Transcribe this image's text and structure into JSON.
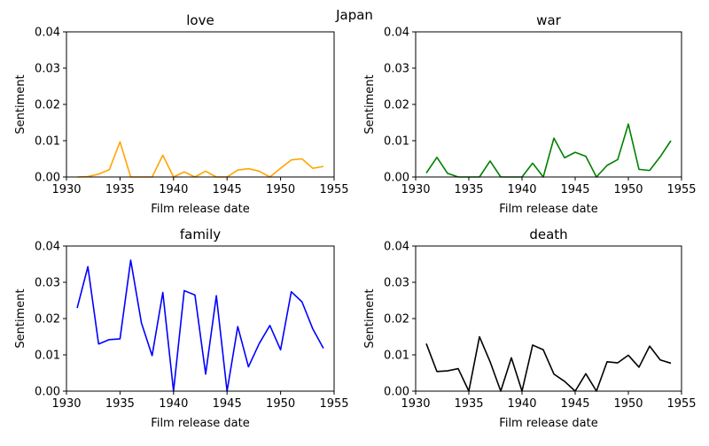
{
  "figure": {
    "suptitle": "Japan"
  },
  "chart_data": [
    {
      "type": "line",
      "title": "love",
      "xlabel": "Film release date",
      "ylabel": "Sentiment",
      "color": "#ffa500",
      "xlim": [
        1930,
        1955
      ],
      "ylim": [
        0,
        0.04
      ],
      "xticks": [
        1930,
        1935,
        1940,
        1945,
        1950,
        1955
      ],
      "yticks": [
        0.0,
        0.01,
        0.02,
        0.03,
        0.04
      ],
      "xtick_labels": [
        "1930",
        "1935",
        "1940",
        "1945",
        "1950",
        "1955"
      ],
      "ytick_labels": [
        "0.00",
        "0.01",
        "0.02",
        "0.03",
        "0.04"
      ],
      "grid": false,
      "series": [
        {
          "x": [
            1931,
            1932,
            1933,
            1934,
            1935,
            1936,
            1937,
            1938,
            1939,
            1940,
            1941,
            1942,
            1943,
            1944,
            1945,
            1946,
            1947,
            1948,
            1949,
            1950,
            1951,
            1952,
            1953,
            1954
          ],
          "y": [
            0.0,
            0.0001,
            0.0008,
            0.002,
            0.0097,
            0.0,
            0.0,
            0.0,
            0.006,
            0.0,
            0.0014,
            0.0,
            0.0016,
            0.0,
            0.0,
            0.0019,
            0.0023,
            0.0016,
            0.0,
            0.0024,
            0.0047,
            0.005,
            0.0024,
            0.0029
          ]
        }
      ]
    },
    {
      "type": "line",
      "title": "war",
      "xlabel": "Film release date",
      "ylabel": "Sentiment",
      "color": "#008000",
      "xlim": [
        1930,
        1955
      ],
      "ylim": [
        0,
        0.04
      ],
      "xticks": [
        1930,
        1935,
        1940,
        1945,
        1950,
        1955
      ],
      "yticks": [
        0.0,
        0.01,
        0.02,
        0.03,
        0.04
      ],
      "xtick_labels": [
        "1930",
        "1935",
        "1940",
        "1945",
        "1950",
        "1955"
      ],
      "ytick_labels": [
        "0.00",
        "0.01",
        "0.02",
        "0.03",
        "0.04"
      ],
      "grid": false,
      "series": [
        {
          "x": [
            1931,
            1932,
            1933,
            1934,
            1935,
            1936,
            1937,
            1938,
            1939,
            1940,
            1941,
            1942,
            1943,
            1944,
            1945,
            1946,
            1947,
            1948,
            1949,
            1950,
            1951,
            1952,
            1953,
            1954
          ],
          "y": [
            0.0011,
            0.0054,
            0.001,
            0.0,
            0.0,
            0.0,
            0.0044,
            0.0,
            0.0,
            0.0,
            0.0038,
            0.0,
            0.0107,
            0.0053,
            0.0068,
            0.0057,
            0.0,
            0.0032,
            0.0048,
            0.0146,
            0.0021,
            0.0018,
            0.0056,
            0.01
          ]
        }
      ]
    },
    {
      "type": "line",
      "title": "family",
      "xlabel": "Film release date",
      "ylabel": "Sentiment",
      "color": "#0000ff",
      "xlim": [
        1930,
        1955
      ],
      "ylim": [
        0,
        0.04
      ],
      "xticks": [
        1930,
        1935,
        1940,
        1945,
        1950,
        1955
      ],
      "yticks": [
        0.0,
        0.01,
        0.02,
        0.03,
        0.04
      ],
      "xtick_labels": [
        "1930",
        "1935",
        "1940",
        "1945",
        "1950",
        "1955"
      ],
      "ytick_labels": [
        "0.00",
        "0.01",
        "0.02",
        "0.03",
        "0.04"
      ],
      "grid": false,
      "series": [
        {
          "x": [
            1931,
            1932,
            1933,
            1934,
            1935,
            1936,
            1937,
            1938,
            1939,
            1940,
            1941,
            1942,
            1943,
            1944,
            1945,
            1946,
            1947,
            1948,
            1949,
            1950,
            1951,
            1952,
            1953,
            1954
          ],
          "y": [
            0.0229,
            0.0343,
            0.013,
            0.0142,
            0.0144,
            0.0361,
            0.0188,
            0.0098,
            0.0272,
            0.0,
            0.0277,
            0.0265,
            0.0047,
            0.0263,
            0.0,
            0.0178,
            0.0067,
            0.0131,
            0.0181,
            0.0114,
            0.0274,
            0.0246,
            0.0172,
            0.0118
          ]
        }
      ]
    },
    {
      "type": "line",
      "title": "death",
      "xlabel": "Film release date",
      "ylabel": "Sentiment",
      "color": "#000000",
      "xlim": [
        1930,
        1955
      ],
      "ylim": [
        0,
        0.04
      ],
      "xticks": [
        1930,
        1935,
        1940,
        1945,
        1950,
        1955
      ],
      "yticks": [
        0.0,
        0.01,
        0.02,
        0.03,
        0.04
      ],
      "xtick_labels": [
        "1930",
        "1935",
        "1940",
        "1945",
        "1950",
        "1955"
      ],
      "ytick_labels": [
        "0.00",
        "0.01",
        "0.02",
        "0.03",
        "0.04"
      ],
      "grid": false,
      "series": [
        {
          "x": [
            1931,
            1932,
            1933,
            1934,
            1935,
            1936,
            1937,
            1938,
            1939,
            1940,
            1941,
            1942,
            1943,
            1944,
            1945,
            1946,
            1947,
            1948,
            1949,
            1950,
            1951,
            1952,
            1953,
            1954
          ],
          "y": [
            0.0131,
            0.0054,
            0.0056,
            0.0062,
            0.0,
            0.015,
            0.0081,
            0.0,
            0.0092,
            0.0,
            0.0127,
            0.0114,
            0.0047,
            0.0027,
            0.0,
            0.0048,
            0.0,
            0.0081,
            0.0078,
            0.0099,
            0.0066,
            0.0124,
            0.0086,
            0.0077
          ]
        }
      ]
    }
  ]
}
